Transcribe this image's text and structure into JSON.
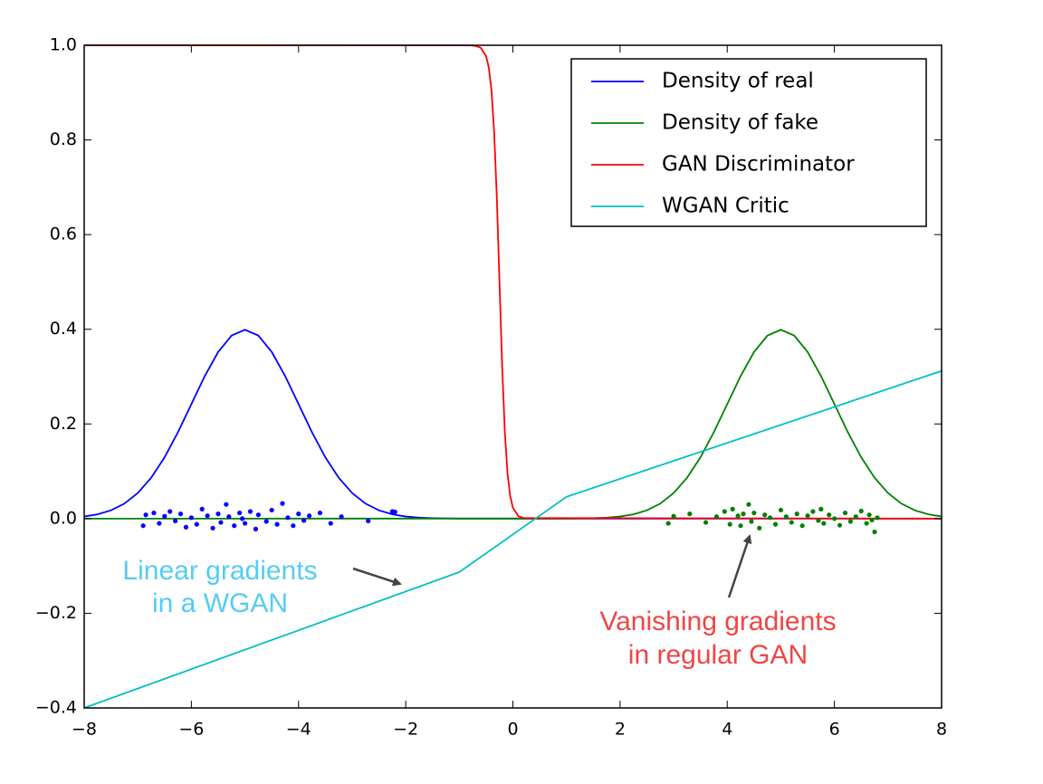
{
  "chart_data": {
    "type": "line",
    "xlim": [
      -8,
      8
    ],
    "ylim": [
      -0.4,
      1.0
    ],
    "xticks": [
      {
        "value": -8,
        "label": "−8"
      },
      {
        "value": -6,
        "label": "−6"
      },
      {
        "value": -4,
        "label": "−4"
      },
      {
        "value": -2,
        "label": "−2"
      },
      0,
      2,
      4,
      6,
      8
    ],
    "yticks": [
      {
        "value": -0.4,
        "label": "−0.4"
      },
      {
        "value": -0.2,
        "label": "−0.2"
      },
      {
        "value": 0,
        "label": "0.0"
      },
      0.2,
      0.4,
      0.6,
      0.8,
      {
        "value": 1,
        "label": "1.0"
      }
    ],
    "legend": "upper right",
    "series": [
      {
        "name": "Density of real",
        "color": "#0000ff",
        "x": [
          -8,
          -7.75,
          -7.5,
          -7.25,
          -7,
          -6.75,
          -6.5,
          -6.25,
          -6,
          -5.75,
          -5.5,
          -5.25,
          -5,
          -4.75,
          -4.5,
          -4.25,
          -4,
          -3.75,
          -3.5,
          -3.25,
          -3,
          -2.75,
          -2.5,
          -2.25,
          -2,
          -1.75,
          -1.5,
          -1.25,
          -1,
          8
        ],
        "values": [
          0.0044,
          0.0091,
          0.0175,
          0.0317,
          0.054,
          0.0863,
          0.1295,
          0.1826,
          0.242,
          0.3011,
          0.352,
          0.3867,
          0.3989,
          0.3867,
          0.352,
          0.3011,
          0.242,
          0.1826,
          0.1295,
          0.0863,
          0.054,
          0.0317,
          0.0175,
          0.0091,
          0.0044,
          0.002,
          0.0009,
          0.0004,
          0.0001,
          0
        ]
      },
      {
        "name": "Density of fake",
        "color": "#008000",
        "x": [
          -8,
          1,
          1.25,
          1.5,
          1.75,
          2,
          2.25,
          2.5,
          2.75,
          3,
          3.25,
          3.5,
          3.75,
          4,
          4.25,
          4.5,
          4.75,
          5,
          5.25,
          5.5,
          5.75,
          6,
          6.25,
          6.5,
          6.75,
          7,
          7.25,
          7.5,
          7.75,
          8
        ],
        "values": [
          0,
          0.0001,
          0.0004,
          0.0009,
          0.002,
          0.0044,
          0.0091,
          0.0175,
          0.0317,
          0.054,
          0.0863,
          0.1295,
          0.1826,
          0.242,
          0.3011,
          0.352,
          0.3867,
          0.3989,
          0.3867,
          0.352,
          0.3011,
          0.242,
          0.1826,
          0.1295,
          0.0863,
          0.054,
          0.0317,
          0.0175,
          0.0091,
          0.0044
        ]
      },
      {
        "name": "GAN Discriminator",
        "color": "#ff0000",
        "x": [
          -8,
          -0.8,
          -0.7,
          -0.6,
          -0.5,
          -0.45,
          -0.4,
          -0.35,
          -0.3,
          -0.25,
          -0.2,
          -0.15,
          -0.1,
          -0.05,
          0,
          0.1,
          0.2,
          8
        ],
        "values": [
          1,
          0.9997,
          0.9988,
          0.9948,
          0.977,
          0.9526,
          0.905,
          0.8176,
          0.679,
          0.5,
          0.321,
          0.1824,
          0.095,
          0.0474,
          0.023,
          0.0052,
          0.0012,
          0
        ]
      },
      {
        "name": "WGAN Critic",
        "color": "#00bfbf",
        "x": [
          -8,
          -1,
          1,
          8
        ],
        "values": [
          -0.4,
          -0.113,
          0.046,
          0.312
        ]
      }
    ],
    "points": [
      {
        "color": "#0000ff",
        "x": [
          -6.9,
          -6.85,
          -6.7,
          -6.6,
          -6.5,
          -6.4,
          -6.3,
          -6.2,
          -6.1,
          -6.0,
          -5.9,
          -5.8,
          -5.7,
          -5.6,
          -5.5,
          -5.45,
          -5.35,
          -5.3,
          -5.2,
          -5.1,
          -5.05,
          -5.0,
          -4.9,
          -4.8,
          -4.75,
          -4.6,
          -4.5,
          -4.4,
          -4.3,
          -4.2,
          -4.1,
          -4.0,
          -3.9,
          -3.8,
          -3.6,
          -3.4,
          -3.2,
          -2.7,
          -2.25,
          -2.2
        ],
        "values": [
          -0.015,
          0.008,
          0.012,
          -0.01,
          0.005,
          0.015,
          -0.005,
          0.01,
          -0.018,
          0.002,
          -0.012,
          0.02,
          0.006,
          -0.02,
          0.01,
          -0.008,
          0.03,
          0.004,
          -0.015,
          0.012,
          0.0,
          -0.01,
          0.015,
          -0.022,
          0.008,
          -0.006,
          0.018,
          -0.012,
          0.032,
          0.002,
          -0.015,
          0.01,
          -0.004,
          0.006,
          0.012,
          -0.01,
          0.004,
          -0.005,
          0.015,
          0.014
        ]
      },
      {
        "color": "#008000",
        "x": [
          2.9,
          3.0,
          3.3,
          3.6,
          3.8,
          3.95,
          4.05,
          4.1,
          4.2,
          4.25,
          4.3,
          4.4,
          4.45,
          4.5,
          4.6,
          4.7,
          4.8,
          4.9,
          5.0,
          5.1,
          5.2,
          5.3,
          5.4,
          5.5,
          5.6,
          5.7,
          5.75,
          5.8,
          5.9,
          6.0,
          6.1,
          6.2,
          6.3,
          6.4,
          6.5,
          6.6,
          6.65,
          6.7,
          6.75,
          6.8
        ],
        "values": [
          -0.01,
          0.005,
          0.01,
          -0.008,
          0.004,
          0.015,
          -0.012,
          0.02,
          0.006,
          -0.015,
          0.01,
          0.03,
          -0.006,
          0.012,
          -0.02,
          0.008,
          0.002,
          -0.012,
          0.018,
          0.004,
          -0.008,
          0.01,
          -0.015,
          0.006,
          0.015,
          -0.004,
          0.02,
          -0.01,
          0.008,
          0.0,
          -0.014,
          0.012,
          -0.006,
          0.004,
          0.016,
          -0.01,
          0.008,
          -0.003,
          -0.028,
          0.002
        ]
      }
    ],
    "annotations": [
      {
        "lines": [
          "Linear gradients",
          "in a WGAN"
        ],
        "color": "#55ccf2"
      },
      {
        "lines": [
          "Vanishing gradients",
          "in regular GAN"
        ],
        "color": "#f04545"
      }
    ]
  }
}
